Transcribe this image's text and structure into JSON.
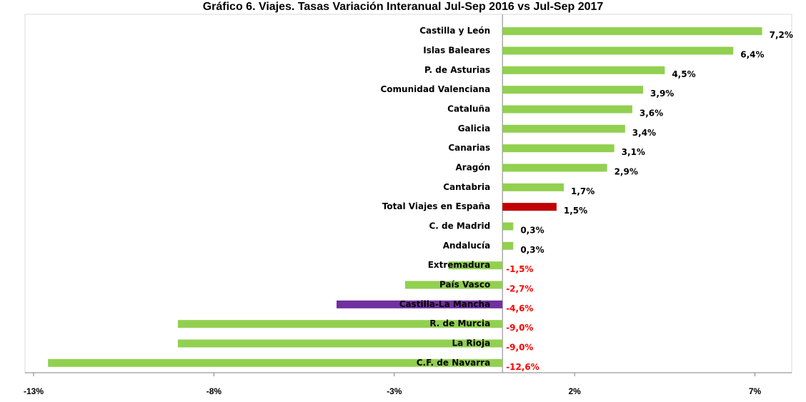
{
  "chart_data": {
    "type": "hbar",
    "title": "Gráfico 6. Viajes. Tasas Variación Interanual Jul-Sep 2016 vs Jul-Sep 2017",
    "categories": [
      "Castilla y León",
      "Islas Baleares",
      "P. de Asturias",
      "Comunidad Valenciana",
      "Cataluña",
      "Galicia",
      "Canarias",
      "Aragón",
      "Cantabria",
      "Total Viajes en España",
      "C. de Madrid",
      "Andalucía",
      "Extremadura",
      "País Vasco",
      "Castilla-La Mancha",
      "R. de Murcia",
      "La Rioja",
      "C.F. de Navarra"
    ],
    "values": [
      7.2,
      6.4,
      4.5,
      3.9,
      3.6,
      3.4,
      3.1,
      2.9,
      1.7,
      1.5,
      0.3,
      0.3,
      -1.5,
      -2.7,
      -4.6,
      -9.0,
      -9.0,
      -12.6
    ],
    "value_labels": [
      "7,2%",
      "6,4%",
      "4,5%",
      "3,9%",
      "3,6%",
      "3,4%",
      "3,1%",
      "2,9%",
      "1,7%",
      "1,5%",
      "0,3%",
      "0,3%",
      "-1,5%",
      "-2,7%",
      "-4,6%",
      "-9,0%",
      "-9,0%",
      "-12,6%"
    ],
    "colors": [
      "#92d050",
      "#92d050",
      "#92d050",
      "#92d050",
      "#92d050",
      "#92d050",
      "#92d050",
      "#92d050",
      "#92d050",
      "#c00000",
      "#92d050",
      "#92d050",
      "#92d050",
      "#92d050",
      "#7030a0",
      "#92d050",
      "#92d050",
      "#92d050"
    ],
    "label_color": "#000000",
    "negative_label_color": "#ff0000",
    "xlim": [
      -13,
      8
    ],
    "xticks": [
      {
        "value": -13,
        "label": "-13%"
      },
      {
        "value": -8,
        "label": "-8%"
      },
      {
        "value": -3,
        "label": "-3%"
      },
      {
        "value": 2,
        "label": "2%"
      },
      {
        "value": 7,
        "label": "7%"
      }
    ]
  }
}
